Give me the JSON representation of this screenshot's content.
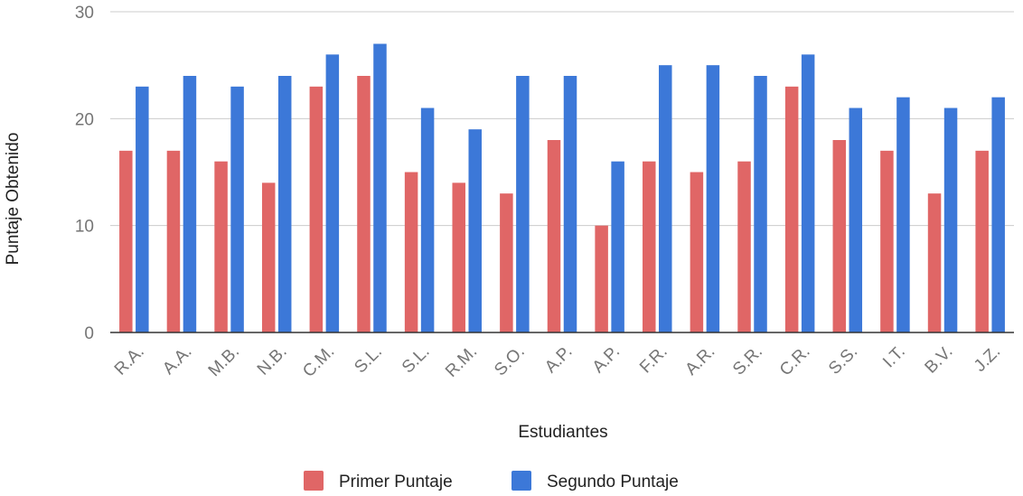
{
  "chart_data": {
    "type": "bar",
    "title": "",
    "xlabel": "Estudiantes",
    "ylabel": "Puntaje Obtenido",
    "ylim": [
      0,
      30
    ],
    "yticks": [
      "0",
      "10",
      "20",
      "30"
    ],
    "grid": true,
    "legend_position": "bottom",
    "categories": [
      "R.A.",
      "A.A.",
      "M.B.",
      "N.B.",
      "C.M.",
      "S.L.",
      "S.L.",
      "R.M.",
      "S.O.",
      "A.P.",
      "A.P.",
      "F.R.",
      "A.R.",
      "S.R.",
      "C.R.",
      "S.S.",
      "I.T.",
      "B.V.",
      "J.Z."
    ],
    "series": [
      {
        "name": "Primer Puntaje",
        "color": "#e06666",
        "values": [
          17,
          17,
          16,
          14,
          23,
          24,
          15,
          14,
          13,
          18,
          10,
          16,
          15,
          16,
          23,
          18,
          17,
          13,
          17
        ]
      },
      {
        "name": "Segundo Puntaje",
        "color": "#3c78d8",
        "values": [
          23,
          24,
          23,
          24,
          26,
          27,
          21,
          19,
          24,
          24,
          16,
          25,
          25,
          24,
          26,
          21,
          22,
          21,
          22
        ]
      }
    ]
  }
}
